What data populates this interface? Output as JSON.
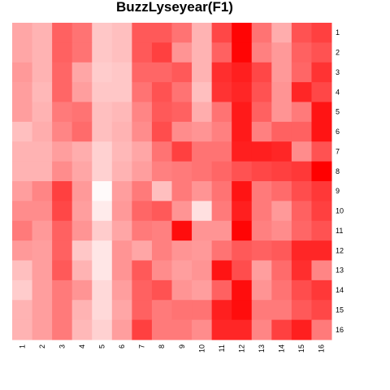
{
  "chart_data": {
    "type": "heatmap",
    "title": "BuzzLyseyear(F1)",
    "xlabel": "",
    "ylabel": "",
    "x_labels": [
      "1",
      "2",
      "3",
      "4",
      "5",
      "6",
      "7",
      "8",
      "9",
      "10",
      "11",
      "12",
      "13",
      "14",
      "15",
      "16"
    ],
    "y_labels": [
      "1",
      "2",
      "3",
      "4",
      "5",
      "6",
      "7",
      "8",
      "9",
      "10",
      "11",
      "12",
      "13",
      "14",
      "15",
      "16"
    ],
    "color_low": "#ffffff",
    "color_high": "#ff0000",
    "value_range": [
      0,
      1
    ],
    "grid": false,
    "legend": "none",
    "values": [
      [
        0.35,
        0.3,
        0.62,
        0.55,
        0.22,
        0.25,
        0.65,
        0.65,
        0.55,
        0.3,
        0.72,
        0.98,
        0.55,
        0.32,
        0.68,
        0.75
      ],
      [
        0.35,
        0.3,
        0.62,
        0.55,
        0.22,
        0.25,
        0.65,
        0.75,
        0.42,
        0.3,
        0.62,
        0.98,
        0.5,
        0.4,
        0.62,
        0.68
      ],
      [
        0.4,
        0.3,
        0.6,
        0.35,
        0.2,
        0.22,
        0.6,
        0.6,
        0.65,
        0.3,
        0.82,
        0.88,
        0.72,
        0.4,
        0.6,
        0.8
      ],
      [
        0.38,
        0.28,
        0.6,
        0.38,
        0.22,
        0.22,
        0.55,
        0.68,
        0.55,
        0.25,
        0.8,
        0.85,
        0.68,
        0.42,
        0.85,
        0.72
      ],
      [
        0.38,
        0.3,
        0.52,
        0.55,
        0.25,
        0.28,
        0.48,
        0.65,
        0.62,
        0.32,
        0.55,
        0.9,
        0.62,
        0.42,
        0.52,
        0.92
      ],
      [
        0.25,
        0.32,
        0.48,
        0.58,
        0.25,
        0.3,
        0.45,
        0.7,
        0.45,
        0.42,
        0.5,
        0.9,
        0.5,
        0.62,
        0.62,
        0.92
      ],
      [
        0.3,
        0.3,
        0.38,
        0.32,
        0.18,
        0.28,
        0.35,
        0.55,
        0.75,
        0.55,
        0.55,
        0.88,
        0.88,
        0.85,
        0.45,
        0.68
      ],
      [
        0.3,
        0.3,
        0.45,
        0.35,
        0.18,
        0.3,
        0.38,
        0.5,
        0.52,
        0.55,
        0.6,
        0.68,
        0.72,
        0.75,
        0.78,
        1.0
      ],
      [
        0.38,
        0.48,
        0.75,
        0.4,
        0.02,
        0.38,
        0.52,
        0.25,
        0.52,
        0.42,
        0.55,
        0.92,
        0.52,
        0.58,
        0.7,
        0.78
      ],
      [
        0.45,
        0.45,
        0.72,
        0.38,
        0.08,
        0.4,
        0.6,
        0.65,
        0.42,
        0.12,
        0.52,
        0.88,
        0.52,
        0.4,
        0.62,
        0.75
      ],
      [
        0.52,
        0.4,
        0.62,
        0.42,
        0.2,
        0.35,
        0.52,
        0.5,
        0.95,
        0.42,
        0.42,
        0.98,
        0.5,
        0.45,
        0.6,
        0.68
      ],
      [
        0.4,
        0.38,
        0.62,
        0.22,
        0.1,
        0.42,
        0.35,
        0.5,
        0.42,
        0.4,
        0.55,
        0.65,
        0.62,
        0.65,
        0.85,
        0.85
      ],
      [
        0.25,
        0.38,
        0.65,
        0.3,
        0.1,
        0.42,
        0.65,
        0.45,
        0.38,
        0.42,
        0.92,
        0.7,
        0.38,
        0.58,
        0.82,
        0.48
      ],
      [
        0.2,
        0.38,
        0.52,
        0.42,
        0.15,
        0.38,
        0.62,
        0.68,
        0.42,
        0.38,
        0.62,
        0.95,
        0.42,
        0.55,
        0.7,
        0.78
      ],
      [
        0.3,
        0.38,
        0.52,
        0.3,
        0.15,
        0.35,
        0.62,
        0.52,
        0.55,
        0.55,
        0.88,
        0.95,
        0.52,
        0.52,
        0.65,
        0.72
      ],
      [
        0.3,
        0.38,
        0.52,
        0.28,
        0.18,
        0.38,
        0.75,
        0.52,
        0.52,
        0.45,
        0.85,
        0.85,
        0.48,
        0.75,
        0.88,
        0.52
      ]
    ]
  }
}
